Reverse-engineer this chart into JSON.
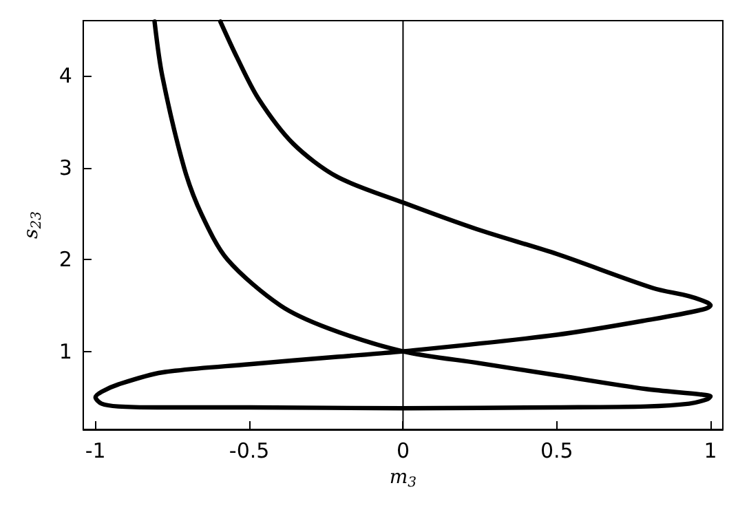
{
  "chart_data": {
    "type": "line",
    "xlabel": "m$_{3}$",
    "ylabel": "s$_{23}$",
    "xlim": [
      -1.04,
      1.04
    ],
    "ylim": [
      0.15,
      4.6
    ],
    "xticks": [
      {
        "value": -1,
        "label": "-1"
      },
      {
        "value": -0.5,
        "label": "-0.5"
      },
      {
        "value": 0,
        "label": "0"
      },
      {
        "value": 0.5,
        "label": "0.5"
      },
      {
        "value": 1,
        "label": "1"
      }
    ],
    "yticks": [
      1,
      2,
      3,
      4
    ],
    "grid": false,
    "marker": "none",
    "line_style": "solid",
    "ref_lines": [
      {
        "axis": "x",
        "value": 0,
        "color": "#000000"
      }
    ],
    "series": [
      {
        "color": "#000000",
        "x": [
          -0.594,
          -0.54,
          -0.47,
          -0.357,
          -0.214,
          0,
          0.24,
          0.5,
          0.812,
          0.93,
          0.99,
          1.0,
          0.98,
          0.812,
          0.5,
          0,
          -0.214,
          -0.499,
          -0.784,
          -0.926,
          -0.98,
          -1.0,
          -0.98,
          -0.926,
          -0.8,
          -0.5,
          0,
          0.5,
          0.79,
          0.93,
          0.99,
          1.0,
          0.97,
          0.79,
          0.5,
          0.25,
          0,
          -0.242,
          -0.399,
          -0.571,
          -0.655,
          -0.712,
          -0.783,
          -0.808
        ],
        "values": [
          4.59,
          4.2,
          3.75,
          3.26,
          2.9,
          2.62,
          2.33,
          2.06,
          1.69,
          1.6,
          1.53,
          1.5,
          1.46,
          1.35,
          1.18,
          1,
          0.94,
          0.86,
          0.77,
          0.64,
          0.56,
          0.5,
          0.43,
          0.4,
          0.39,
          0.39,
          0.38,
          0.39,
          0.4,
          0.43,
          0.48,
          0.51,
          0.53,
          0.59,
          0.74,
          0.87,
          1,
          1.25,
          1.5,
          2,
          2.49,
          3,
          4,
          4.59
        ]
      }
    ]
  }
}
